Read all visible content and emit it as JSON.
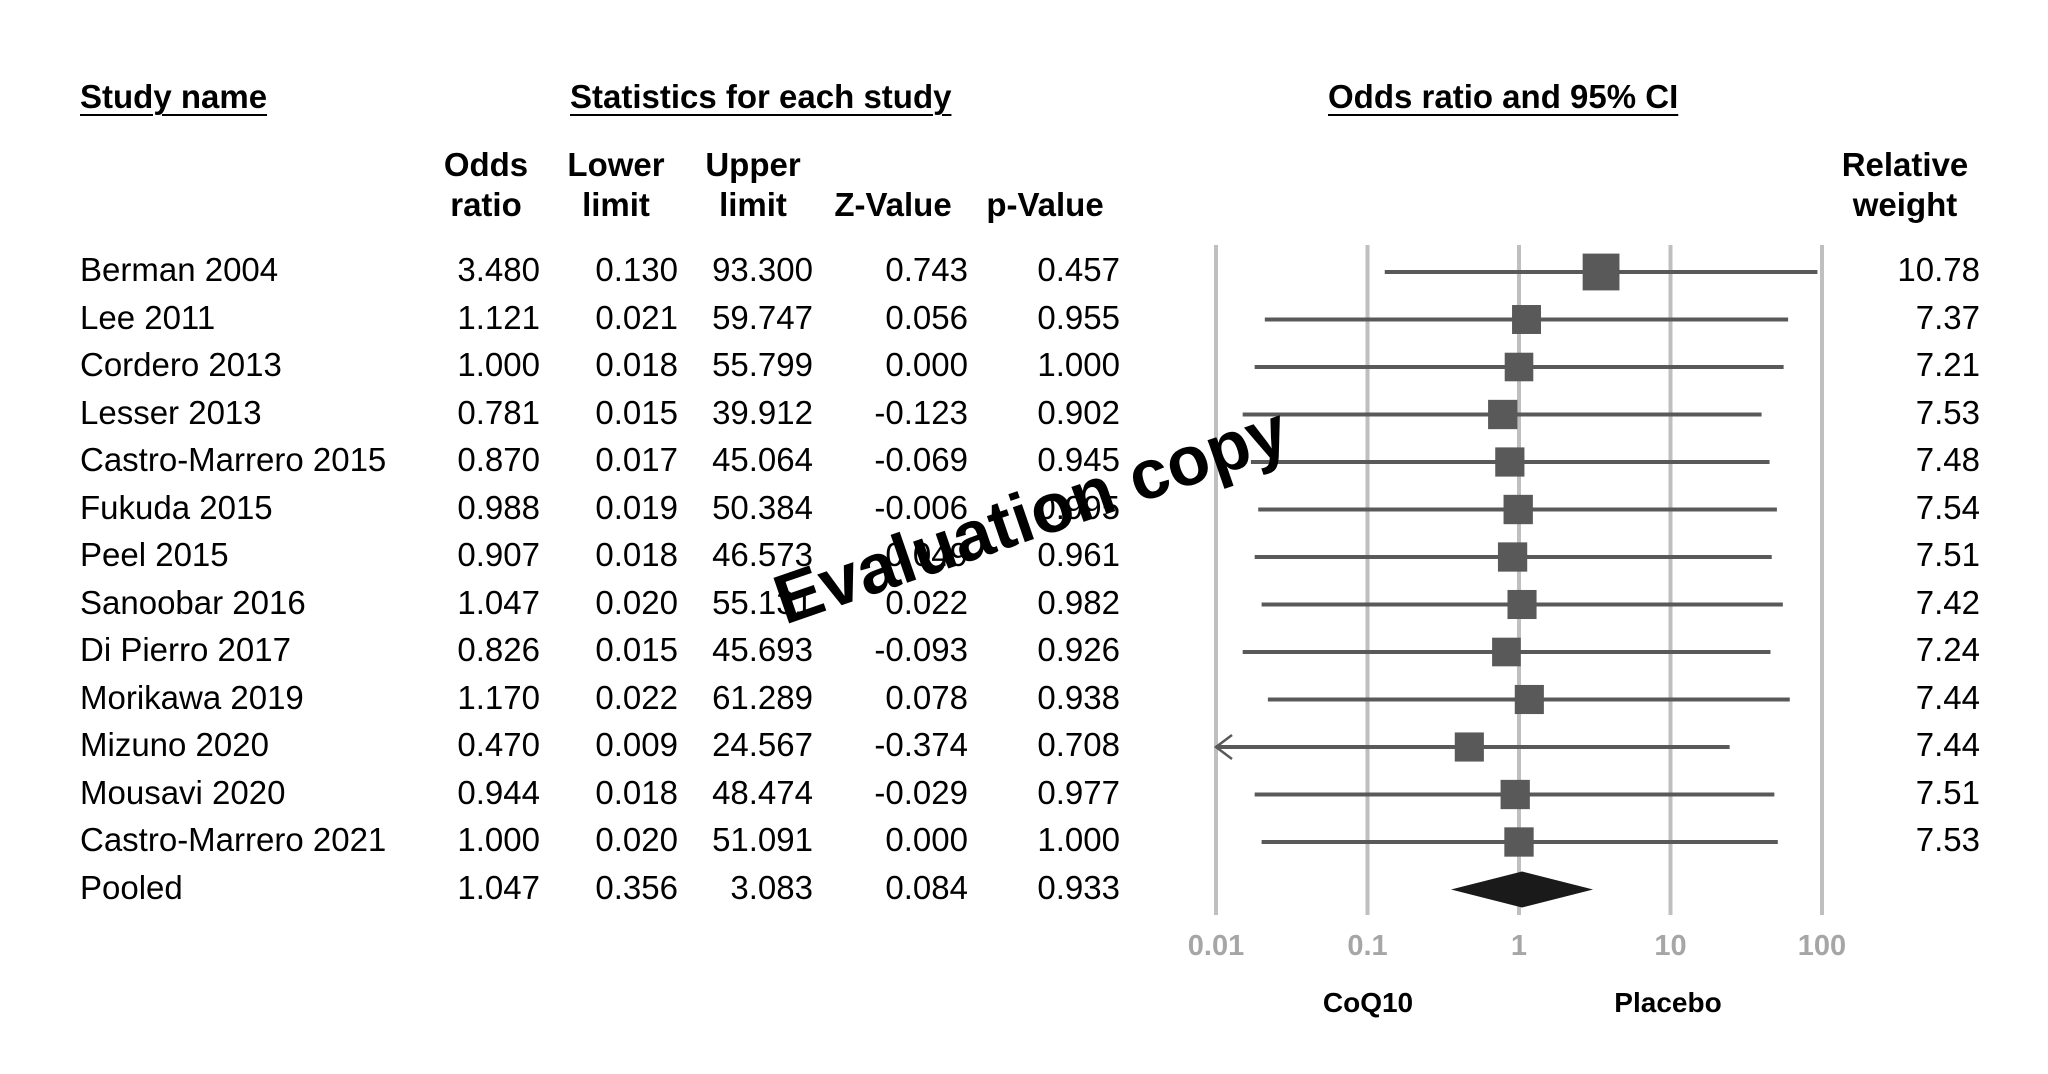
{
  "headers": {
    "study_name": "Study name",
    "statistics": "Statistics for each study",
    "odds_ratio_ci": "Odds ratio and 95% CI",
    "relative_weight_line1": "Relative",
    "relative_weight_line2": "weight"
  },
  "columns": [
    {
      "line1": "Odds",
      "line2": "ratio"
    },
    {
      "line1": "Lower",
      "line2": "limit"
    },
    {
      "line1": "Upper",
      "line2": "limit"
    },
    {
      "line1": "",
      "line2": "Z-Value"
    },
    {
      "line1": "",
      "line2": "p-Value"
    }
  ],
  "watermark": "Evaluation copy",
  "chart_data": {
    "type": "forest",
    "x_scale": "log",
    "xlim": [
      0.01,
      100
    ],
    "x_ticks": [
      "0.01",
      "0.1",
      "1",
      "10",
      "100"
    ],
    "x_tick_values": [
      0.01,
      0.1,
      1,
      10,
      100
    ],
    "left_label": "CoQ10",
    "right_label": "Placebo",
    "marker_color": "#595959",
    "pooled_color": "#1a1a1a",
    "grid_color": "#bfbfbf",
    "studies": [
      {
        "name": "Berman 2004",
        "odds_ratio": "3.480",
        "lower": "0.130",
        "upper": "93.300",
        "z": "0.743",
        "p": "0.457",
        "weight": "10.78",
        "or_v": 3.48,
        "lo_v": 0.13,
        "hi_v": 93.3,
        "w_v": 10.78
      },
      {
        "name": "Lee 2011",
        "odds_ratio": "1.121",
        "lower": "0.021",
        "upper": "59.747",
        "z": "0.056",
        "p": "0.955",
        "weight": "7.37",
        "or_v": 1.121,
        "lo_v": 0.021,
        "hi_v": 59.747,
        "w_v": 7.37
      },
      {
        "name": "Cordero 2013",
        "odds_ratio": "1.000",
        "lower": "0.018",
        "upper": "55.799",
        "z": "0.000",
        "p": "1.000",
        "weight": "7.21",
        "or_v": 1.0,
        "lo_v": 0.018,
        "hi_v": 55.799,
        "w_v": 7.21
      },
      {
        "name": "Lesser 2013",
        "odds_ratio": "0.781",
        "lower": "0.015",
        "upper": "39.912",
        "z": "-0.123",
        "p": "0.902",
        "weight": "7.53",
        "or_v": 0.781,
        "lo_v": 0.015,
        "hi_v": 39.912,
        "w_v": 7.53
      },
      {
        "name": "Castro-Marrero 2015",
        "odds_ratio": "0.870",
        "lower": "0.017",
        "upper": "45.064",
        "z": "-0.069",
        "p": "0.945",
        "weight": "7.48",
        "or_v": 0.87,
        "lo_v": 0.017,
        "hi_v": 45.064,
        "w_v": 7.48
      },
      {
        "name": "Fukuda 2015",
        "odds_ratio": "0.988",
        "lower": "0.019",
        "upper": "50.384",
        "z": "-0.006",
        "p": "0.995",
        "weight": "7.54",
        "or_v": 0.988,
        "lo_v": 0.019,
        "hi_v": 50.384,
        "w_v": 7.54
      },
      {
        "name": "Peel 2015",
        "odds_ratio": "0.907",
        "lower": "0.018",
        "upper": "46.573",
        "z": "-0.049",
        "p": "0.961",
        "weight": "7.51",
        "or_v": 0.907,
        "lo_v": 0.018,
        "hi_v": 46.573,
        "w_v": 7.51
      },
      {
        "name": "Sanoobar 2016",
        "odds_ratio": "1.047",
        "lower": "0.020",
        "upper": "55.131",
        "z": "0.022",
        "p": "0.982",
        "weight": "7.42",
        "or_v": 1.047,
        "lo_v": 0.02,
        "hi_v": 55.131,
        "w_v": 7.42
      },
      {
        "name": "Di Pierro 2017",
        "odds_ratio": "0.826",
        "lower": "0.015",
        "upper": "45.693",
        "z": "-0.093",
        "p": "0.926",
        "weight": "7.24",
        "or_v": 0.826,
        "lo_v": 0.015,
        "hi_v": 45.693,
        "w_v": 7.24
      },
      {
        "name": "Morikawa 2019",
        "odds_ratio": "1.170",
        "lower": "0.022",
        "upper": "61.289",
        "z": "0.078",
        "p": "0.938",
        "weight": "7.44",
        "or_v": 1.17,
        "lo_v": 0.022,
        "hi_v": 61.289,
        "w_v": 7.44
      },
      {
        "name": "Mizuno 2020",
        "odds_ratio": "0.470",
        "lower": "0.009",
        "upper": "24.567",
        "z": "-0.374",
        "p": "0.708",
        "weight": "7.44",
        "or_v": 0.47,
        "lo_v": 0.009,
        "hi_v": 24.567,
        "w_v": 7.44
      },
      {
        "name": "Mousavi 2020",
        "odds_ratio": "0.944",
        "lower": "0.018",
        "upper": "48.474",
        "z": "-0.029",
        "p": "0.977",
        "weight": "7.51",
        "or_v": 0.944,
        "lo_v": 0.018,
        "hi_v": 48.474,
        "w_v": 7.51
      },
      {
        "name": "Castro-Marrero 2021",
        "odds_ratio": "1.000",
        "lower": "0.020",
        "upper": "51.091",
        "z": "0.000",
        "p": "1.000",
        "weight": "7.53",
        "or_v": 1.0,
        "lo_v": 0.02,
        "hi_v": 51.091,
        "w_v": 7.53
      }
    ],
    "pooled": {
      "name": "Pooled",
      "odds_ratio": "1.047",
      "lower": "0.356",
      "upper": "3.083",
      "z": "0.084",
      "p": "0.933",
      "or_v": 1.047,
      "lo_v": 0.356,
      "hi_v": 3.083
    }
  }
}
